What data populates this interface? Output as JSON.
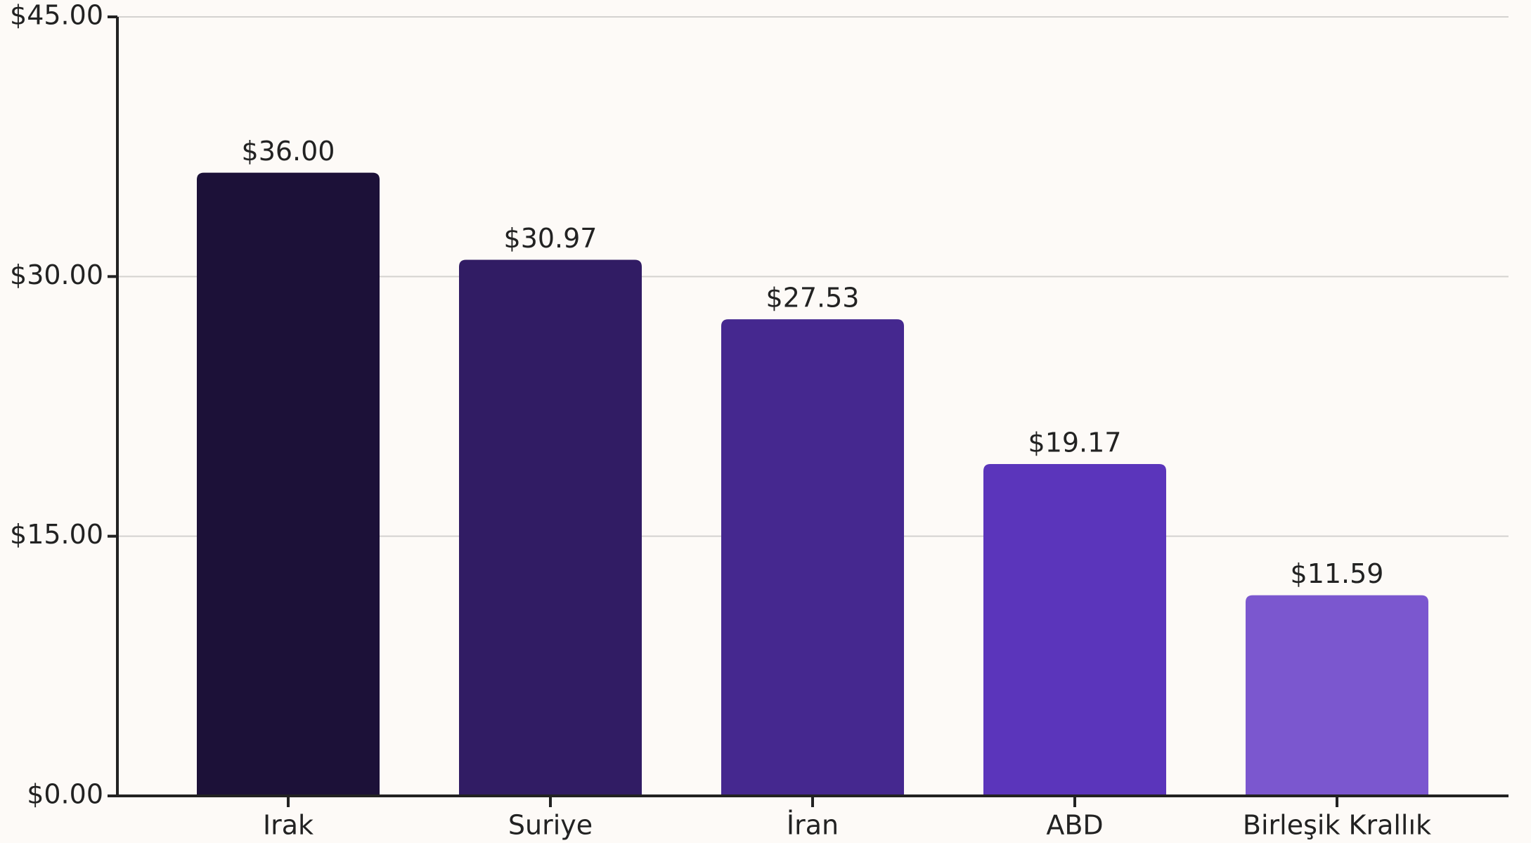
{
  "chart_data": {
    "type": "bar",
    "categories": [
      "Irak",
      "Suriye",
      "İran",
      "ABD",
      "Birleşik Krallık"
    ],
    "values": [
      36.0,
      30.97,
      27.53,
      19.17,
      11.59
    ],
    "value_labels": [
      "$36.00",
      "$30.97",
      "$27.53",
      "$19.17",
      "$11.59"
    ],
    "colors": [
      "#1c1138",
      "#311c64",
      "#45288f",
      "#5b35bb",
      "#7b57cf"
    ],
    "ylim": [
      0,
      45
    ],
    "yticks": [
      {
        "value": 0,
        "label": "$0.00"
      },
      {
        "value": 15,
        "label": "$15.00"
      },
      {
        "value": 30,
        "label": "$30.00"
      },
      {
        "value": 45,
        "label": "$45.00"
      }
    ],
    "grid": true
  }
}
